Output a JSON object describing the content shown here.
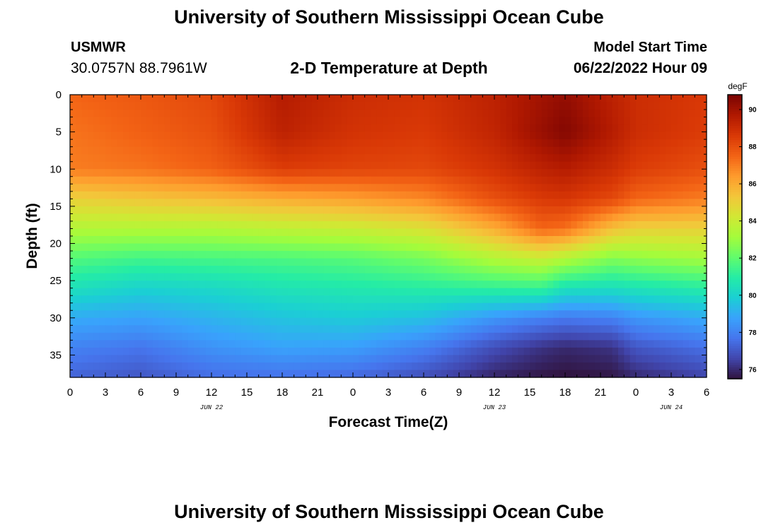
{
  "header": {
    "title": "University of Southern Mississippi Ocean Cube",
    "station_name": "USMWR",
    "station_coords": "30.0757N  88.7961W",
    "plot_title": "2-D Temperature at Depth",
    "model_label": "Model Start Time",
    "model_time": "06/22/2022 Hour 09"
  },
  "footer": {
    "title": "University of Southern Mississippi Ocean Cube"
  },
  "chart_data": {
    "type": "heatmap",
    "title": "2-D Temperature at Depth",
    "xlabel": "Forecast Time(Z)",
    "ylabel": "Depth (ft)",
    "x_range": [
      0,
      54
    ],
    "y_range": [
      0,
      38
    ],
    "y_inverted": true,
    "x_tick_values": [
      0,
      3,
      6,
      9,
      12,
      15,
      18,
      21,
      24,
      27,
      30,
      33,
      36,
      39,
      42,
      45,
      48,
      51,
      54
    ],
    "x_tick_labels": [
      "0",
      "3",
      "6",
      "9",
      "12",
      "15",
      "18",
      "21",
      "0",
      "3",
      "6",
      "9",
      "12",
      "15",
      "18",
      "21",
      "0",
      "3",
      "6"
    ],
    "date_labels": [
      {
        "x": 12,
        "text": "JUN 22"
      },
      {
        "x": 36,
        "text": "JUN 23"
      },
      {
        "x": 51,
        "text": "JUN 24"
      }
    ],
    "y_tick_values": [
      0,
      5,
      10,
      15,
      20,
      25,
      30,
      35
    ],
    "y_tick_labels": [
      "0",
      "5",
      "10",
      "15",
      "20",
      "25",
      "30",
      "35"
    ],
    "colorbar": {
      "unit": "degF",
      "range": [
        75.5,
        90.8
      ],
      "ticks": [
        76,
        78,
        80,
        82,
        84,
        86,
        88,
        90
      ],
      "tick_labels": [
        "76",
        "78",
        "80",
        "82",
        "84",
        "86",
        "88",
        "90"
      ],
      "colors": [
        "#30123b",
        "#4145ab",
        "#4675ed",
        "#39a2fc",
        "#1bcfd4",
        "#24eca6",
        "#61fc6c",
        "#a4fc3b",
        "#d1e834",
        "#f3c63a",
        "#fe9b2d",
        "#f36315",
        "#d93806",
        "#b11901",
        "#7a0403"
      ]
    },
    "grid_x_hours": [
      0,
      6,
      12,
      18,
      24,
      30,
      36,
      40,
      42,
      46,
      48,
      54
    ],
    "grid_depths_ft": [
      0,
      5,
      10,
      14,
      18,
      22,
      26,
      30,
      34,
      38
    ],
    "temperature_degF": [
      [
        87.5,
        87.8,
        88.2,
        89.6,
        89.0,
        88.8,
        89.4,
        90.0,
        90.3,
        89.4,
        89.0,
        88.6
      ],
      [
        87.2,
        87.6,
        88.0,
        89.4,
        88.8,
        88.6,
        89.3,
        90.2,
        90.6,
        89.6,
        89.0,
        88.5
      ],
      [
        87.0,
        87.2,
        87.6,
        88.5,
        88.3,
        88.2,
        88.8,
        89.4,
        89.6,
        89.0,
        88.5,
        88.0
      ],
      [
        85.0,
        85.3,
        85.6,
        86.0,
        86.3,
        86.8,
        88.0,
        88.6,
        88.7,
        88.2,
        87.5,
        87.0
      ],
      [
        83.5,
        83.5,
        83.5,
        83.8,
        84.0,
        84.5,
        86.0,
        87.5,
        87.3,
        85.5,
        85.0,
        85.0
      ],
      [
        81.8,
        81.5,
        81.6,
        81.7,
        81.9,
        82.4,
        83.5,
        84.0,
        83.5,
        82.6,
        82.8,
        83.2
      ],
      [
        80.5,
        80.0,
        80.2,
        80.6,
        80.8,
        81.0,
        81.2,
        81.3,
        80.5,
        80.4,
        80.6,
        81.0
      ],
      [
        79.0,
        78.8,
        79.2,
        79.6,
        79.8,
        79.5,
        78.5,
        78.0,
        77.8,
        78.0,
        78.5,
        79.0
      ],
      [
        78.0,
        77.7,
        78.4,
        78.8,
        78.7,
        78.0,
        76.8,
        76.2,
        76.0,
        76.2,
        77.0,
        77.6
      ],
      [
        77.3,
        77.0,
        77.5,
        77.6,
        77.4,
        76.8,
        75.9,
        75.6,
        75.5,
        75.6,
        76.0,
        76.6
      ]
    ]
  }
}
